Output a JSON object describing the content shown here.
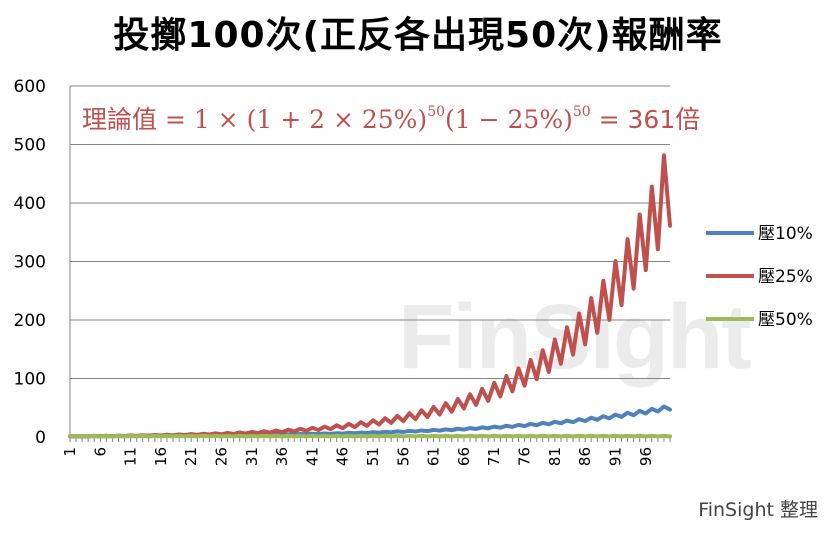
{
  "chart_data": {
    "type": "line",
    "title": "投擲100次(正反各出現50次)報酬率",
    "annotation": {
      "label": "理論值",
      "parts": [
        "= 1 × (1 + 2 × 25%)",
        "50",
        "(1 − 25%)",
        "50",
        " = 361倍"
      ]
    },
    "ylim": [
      0,
      600
    ],
    "yticks": [
      0,
      100,
      200,
      300,
      400,
      500,
      600
    ],
    "x_range": [
      1,
      100
    ],
    "xticks": [
      "1",
      "6",
      "11",
      "16",
      "21",
      "26",
      "31",
      "36",
      "41",
      "46",
      "51",
      "56",
      "61",
      "66",
      "71",
      "76",
      "81",
      "86",
      "91",
      "96"
    ],
    "grid": "horizontal",
    "legend_position": "right",
    "series": [
      {
        "name": "壓10%",
        "color": "#4F81BD",
        "bet_fraction": 0.1,
        "pattern": "alternating win (odd flips) / loss (even flips), 100 flips",
        "final_value": 45.3
      },
      {
        "name": "壓25%",
        "color": "#C0504D",
        "bet_fraction": 0.25,
        "pattern": "alternating win (odd flips) / loss (even flips), 100 flips",
        "final_value": 361
      },
      {
        "name": "壓50%",
        "color": "#9BBB59",
        "bet_fraction": 0.5,
        "pattern": "alternating win (odd flips) / loss (even flips), 100 flips",
        "final_value": 0.0
      }
    ]
  },
  "watermark_text": "FinSight",
  "credit": "FinSight 整理"
}
